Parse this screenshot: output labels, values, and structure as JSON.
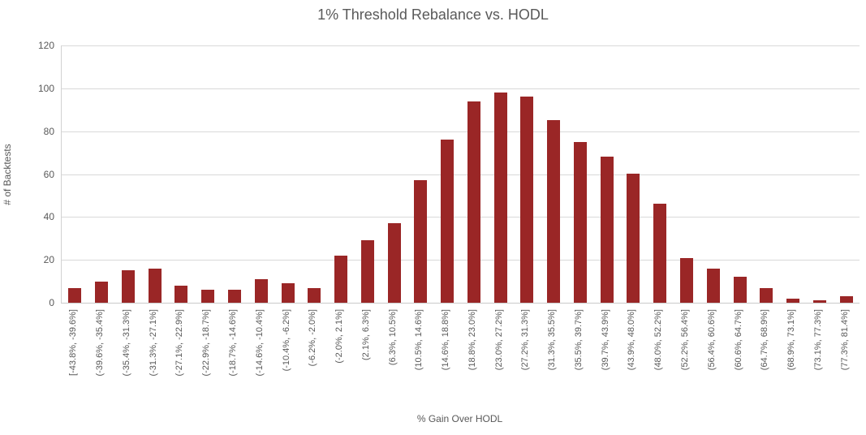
{
  "colors": {
    "bar": "#9a2626",
    "text": "#595959",
    "gridline": "#d9d9d9",
    "background": "#ffffff"
  },
  "chart_data": {
    "type": "bar",
    "title": "1% Threshold Rebalance vs. HODL",
    "xlabel": "% Gain Over HODL",
    "ylabel": "# of Backtests",
    "ylim": [
      0,
      120
    ],
    "ytick_interval": 20,
    "yticks": [
      0,
      20,
      40,
      60,
      80,
      100,
      120
    ],
    "grid": true,
    "legend": "none",
    "categories": [
      "[-43.8%, -39.6%]",
      "(-39.6%, -35.4%]",
      "(-35.4%, -31.3%]",
      "(-31.3%, -27.1%]",
      "(-27.1%, -22.9%]",
      "(-22.9%, -18.7%]",
      "(-18.7%, -14.6%]",
      "(-14.6%, -10.4%]",
      "(-10.4%, -6.2%]",
      "(-6.2%, -2.0%]",
      "(-2.0%, 2.1%]",
      "(2.1%, 6.3%]",
      "(6.3%, 10.5%]",
      "(10.5%, 14.6%]",
      "(14.6%, 18.8%]",
      "(18.8%, 23.0%]",
      "(23.0%, 27.2%]",
      "(27.2%, 31.3%]",
      "(31.3%, 35.5%]",
      "(35.5%, 39.7%]",
      "(39.7%, 43.9%]",
      "(43.9%, 48.0%]",
      "(48.0%, 52.2%]",
      "(52.2%, 56.4%]",
      "(56.4%, 60.6%]",
      "(60.6%, 64.7%]",
      "(64.7%, 68.9%]",
      "(68.9%, 73.1%]",
      "(73.1%, 77.3%]",
      "(77.3%, 81.4%]"
    ],
    "values": [
      7,
      10,
      15,
      16,
      8,
      6,
      6,
      11,
      9,
      7,
      22,
      29,
      37,
      57,
      76,
      94,
      98,
      96,
      85,
      75,
      68,
      60,
      46,
      21,
      16,
      12,
      7,
      2,
      1,
      3
    ]
  }
}
